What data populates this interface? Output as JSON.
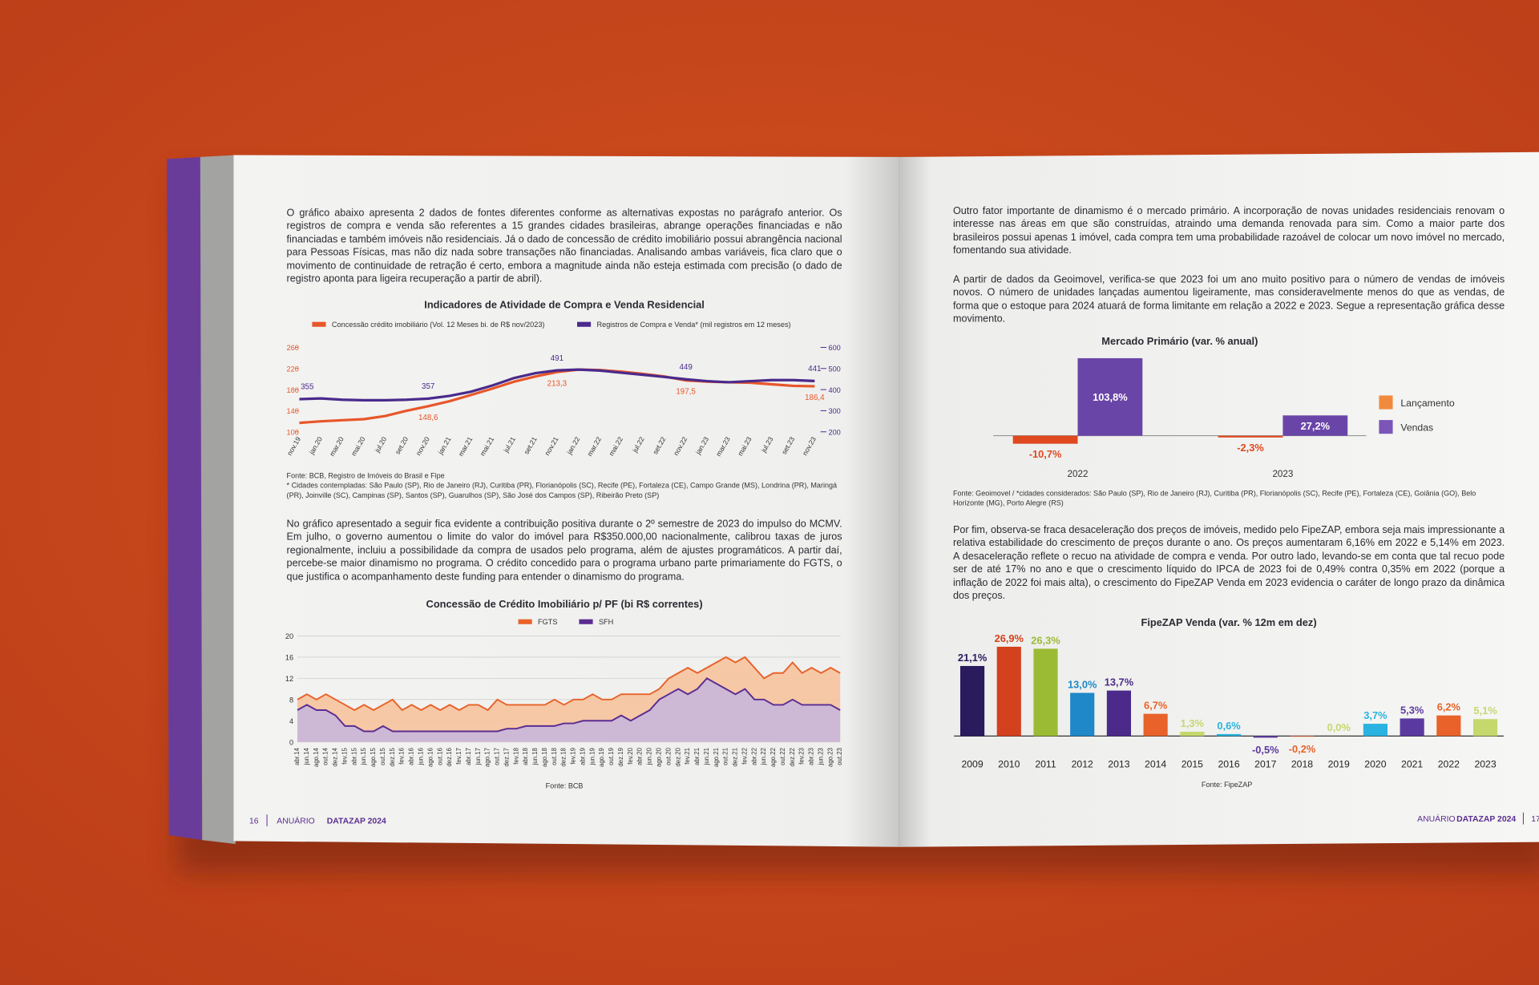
{
  "document": {
    "left_page": {
      "paragraphs": [
        "O gráfico abaixo apresenta 2 dados de fontes diferentes conforme as alternativas expostas no parágrafo anterior. Os registros de compra e venda são referentes a 15 grandes cidades brasileiras, abrange operações financiadas e não financiadas e também imóveis não residenciais. Já o dado de concessão de crédito imobiliário possui abrangência nacional para Pessoas Físicas, mas não diz nada sobre transações não financiadas. Analisando ambas variáveis, fica claro que o movimento de continuidade de retração é certo, embora a magnitude ainda não esteja estimada com precisão (o dado de registro aponta para ligeira recuperação a partir de abril).",
        "No gráfico apresentado a seguir fica evidente a contribuição positiva durante o 2º semestre de 2023 do impulso do MCMV. Em julho, o governo aumentou o limite do valor do imóvel para R$350.000,00 nacionalmente, calibrou taxas de juros regionalmente, incluiu a possibilidade da compra de usados pelo programa, além de ajustes programáticos. A partir daí, percebe-se maior dinamismo no programa. O crédito concedido para o programa urbano parte primariamente do FGTS, o que justifica o acompanhamento deste funding para entender o dinamismo do programa."
      ],
      "footer": {
        "page_number": "16",
        "label": "ANUÁRIO",
        "brand": "DATAZAP 2024"
      }
    },
    "right_page": {
      "paragraphs": [
        "Outro fator importante de dinamismo é o mercado primário. A incorporação de novas unidades residenciais renovam o interesse nas áreas em que são construídas, atraindo uma demanda renovada para sim. Como a maior parte dos brasileiros possui apenas 1 imóvel, cada compra tem uma probabilidade razoável de colocar um novo imóvel no mercado, fomentando sua atividade.",
        "A partir de dados da Geoimovel, verifica-se que 2023 foi um ano muito positivo para o número de vendas de imóveis novos. O número de unidades lançadas aumentou ligeiramente, mas consideravelmente menos do que as vendas, de forma que o estoque para 2024 atuará de forma limitante em relação a 2022 e 2023. Segue a representação gráfica desse movimento.",
        "Por fim, observa-se fraca desaceleração dos preços de imóveis, medido pelo FipeZAP,  embora seja mais impressionante a relativa estabilidade do crescimento de preços durante o ano. Os preços aumentaram 6,16% em 2022 e 5,14% em 2023. A desaceleração reflete o recuo na atividade de compra e venda. Por outro lado, levando-se em conta que tal recuo pode ser de até  17% no ano e que o crescimento líquido do IPCA de 2023 foi de 0,49% contra 0,35% em 2022 (porque a inflação de 2022 foi mais alta), o crescimento do FipeZAP Venda em 2023 evidencia o caráter de longo prazo da dinâmica dos preços."
      ],
      "footer": {
        "label": "ANUÁRIO",
        "brand": "DATAZAP 2024",
        "page_number": "17"
      }
    }
  },
  "chart_data": [
    {
      "type": "line",
      "title": "Indicadores de Atividade de Compra e Venda Residencial",
      "source": "Fonte: BCB, Registro de Imóveis do Brasil e Fipe",
      "note": "* Cidades contempladas: São Paulo (SP), Rio de Janeiro (RJ), Curitiba (PR), Florianópolis (SC), Recife (PE), Fortaleza (CE), Campo Grande (MS), Londrina (PR), Maringá (PR), Joinville (SC), Campinas (SP), Santos (SP), Guarulhos (SP), São José dos Campos (SP), Ribeirão Preto (SP)",
      "categories": [
        "nov.19",
        "jan.20",
        "mar.20",
        "mai.20",
        "jul.20",
        "set.20",
        "nov.20",
        "jan.21",
        "mar.21",
        "mai.21",
        "jul.21",
        "set.21",
        "nov.21",
        "jan.22",
        "mar.22",
        "mai.22",
        "jul.22",
        "set.22",
        "nov.22",
        "jan.23",
        "mar.23",
        "mai.23",
        "jul.23",
        "set.23",
        "nov.23"
      ],
      "series": [
        {
          "name": "Concessão crédito imobiliário (Vol. 12 Meses bi. de R$ nov/2023)",
          "color": "#e8562a",
          "values": [
            117,
            120,
            122,
            124,
            130,
            140,
            148.6,
            158,
            170,
            182,
            195,
            205,
            213.3,
            218,
            217,
            214,
            210,
            205,
            197.5,
            195,
            194,
            193,
            190,
            187,
            186.4
          ],
          "value_labels": [
            null,
            null,
            null,
            null,
            null,
            null,
            "148,6",
            null,
            null,
            null,
            null,
            null,
            "213,3",
            null,
            null,
            null,
            null,
            null,
            "197,5",
            null,
            null,
            null,
            null,
            null,
            "186,4"
          ]
        },
        {
          "name": "Registros de Compra e Venda* (mil registros em 12 meses)",
          "color": "#4a2a8c",
          "axis": "y2",
          "values": [
            355,
            358,
            352,
            350,
            350,
            352,
            357,
            370,
            390,
            420,
            455,
            478,
            491,
            495,
            490,
            480,
            470,
            460,
            449,
            440,
            435,
            440,
            445,
            445,
            441
          ],
          "value_labels": [
            "355",
            null,
            null,
            null,
            null,
            null,
            "357",
            null,
            null,
            null,
            null,
            null,
            "491",
            null,
            null,
            null,
            null,
            null,
            "449",
            null,
            null,
            null,
            null,
            null,
            "441"
          ]
        }
      ],
      "ylim": [
        100,
        260
      ],
      "yticks": [
        100,
        140,
        180,
        220,
        260
      ],
      "y2lim": [
        200,
        600
      ],
      "y2ticks": [
        200,
        300,
        400,
        500,
        600
      ],
      "grid": false
    },
    {
      "type": "area",
      "title": "Concessão de Crédito Imobiliário p/ PF (bi R$ correntes)",
      "source": "Fonte: BCB",
      "categories": [
        "abr.14",
        "jun.14",
        "ago.14",
        "out.14",
        "dez.14",
        "fev.15",
        "abr.15",
        "jun.15",
        "ago.15",
        "out.15",
        "dez.15",
        "fev.16",
        "abr.16",
        "jun.16",
        "ago.16",
        "out.16",
        "dez.16",
        "fev.17",
        "abr.17",
        "jun.17",
        "ago.17",
        "out.17",
        "dez.17",
        "fev.18",
        "abr.18",
        "jun.18",
        "ago.18",
        "out.18",
        "dez.18",
        "fev.19",
        "abr.19",
        "jun.19",
        "ago.19",
        "out.19",
        "dez.19",
        "fev.20",
        "abr.20",
        "jun.20",
        "ago.20",
        "out.20",
        "dez.20",
        "fev.21",
        "abr.21",
        "jun.21",
        "ago.21",
        "out.21",
        "dez.21",
        "fev.22",
        "abr.22",
        "jun.22",
        "ago.22",
        "out.22",
        "dez.22",
        "fev.23",
        "abr.23",
        "jun.23",
        "ago.23",
        "out.23"
      ],
      "series": [
        {
          "name": "FGTS",
          "color": "#e8622a",
          "fill": "#f6c39c",
          "values": [
            8,
            9,
            8,
            9,
            8,
            7,
            6,
            7,
            6,
            7,
            8,
            6,
            7,
            6,
            7,
            6,
            7,
            6,
            7,
            7,
            6,
            8,
            7,
            7,
            7,
            7,
            7,
            8,
            7,
            8,
            8,
            9,
            8,
            8,
            9,
            9,
            9,
            9,
            10,
            12,
            13,
            14,
            13,
            14,
            15,
            16,
            15,
            16,
            14,
            12,
            13,
            13,
            15,
            13,
            14,
            13,
            14,
            13
          ]
        },
        {
          "name": "SFH",
          "color": "#5b2d91",
          "fill": "#c9b6dc",
          "values": [
            6,
            7,
            6,
            6,
            5,
            3,
            3,
            2,
            2,
            3,
            2,
            2,
            2,
            2,
            2,
            2,
            2,
            2,
            2,
            2,
            2,
            2,
            2.5,
            2.5,
            3,
            3,
            3,
            3,
            3.5,
            3.5,
            4,
            4,
            4,
            4,
            5,
            4,
            5,
            6,
            8,
            9,
            10,
            9,
            10,
            12,
            11,
            10,
            9,
            10,
            8,
            8,
            7,
            7,
            8,
            7,
            7,
            7,
            7,
            6
          ]
        }
      ],
      "ylim": [
        0,
        20
      ],
      "yticks": [
        0,
        4,
        8,
        12,
        16,
        20
      ],
      "grid": true
    },
    {
      "type": "bar",
      "title": "Mercado Primário (var. % anual)",
      "source": "Fonte: Geoimovel / *cidades considerados: São Paulo (SP), Rio de Janeiro (RJ), Curitiba (PR), Florianópolis (SC), Recife (PE), Fortaleza (CE), Goiânia (GO), Belo Horizonte (MG), Porto Alegre (RS)",
      "categories": [
        "2022",
        "2023"
      ],
      "series": [
        {
          "name": "Lançamento",
          "color": "#e0481f",
          "legend_color": "#f28a3e",
          "values": [
            -10.7,
            -2.3
          ],
          "value_labels": [
            "-10,7%",
            "-2,3%"
          ]
        },
        {
          "name": "Vendas",
          "color": "#6a45a8",
          "legend_color": "#7b55b8",
          "values": [
            103.8,
            27.2
          ],
          "value_labels": [
            "103,8%",
            "27,2%"
          ]
        }
      ]
    },
    {
      "type": "bar",
      "title": "FipeZAP Venda (var. % 12m em dez)",
      "source": "Fonte: FipeZAP",
      "categories": [
        "2009",
        "2010",
        "2011",
        "2012",
        "2013",
        "2014",
        "2015",
        "2016",
        "2017",
        "2018",
        "2019",
        "2020",
        "2021",
        "2022",
        "2023"
      ],
      "values": [
        21.1,
        26.9,
        26.3,
        13.0,
        13.7,
        6.7,
        1.3,
        0.6,
        -0.5,
        -0.2,
        0.0,
        3.7,
        5.3,
        6.2,
        5.1
      ],
      "value_labels": [
        "21,1%",
        "26,9%",
        "26,3%",
        "13,0%",
        "13,7%",
        "6,7%",
        "1,3%",
        "0,6%",
        "-0,5%",
        "-0,2%",
        "0,0%",
        "3,7%",
        "5,3%",
        "6,2%",
        "5,1%"
      ],
      "colors": [
        "#2a1a5e",
        "#d4411e",
        "#9bbb35",
        "#1e88c8",
        "#4b2a8a",
        "#e8622a",
        "#c5d86d",
        "#2ab3e0",
        "#5b3aa0",
        "#e8622a",
        "#c5d86d",
        "#2ab3e0",
        "#5b3aa0",
        "#e8622a",
        "#c5d86d"
      ]
    }
  ]
}
